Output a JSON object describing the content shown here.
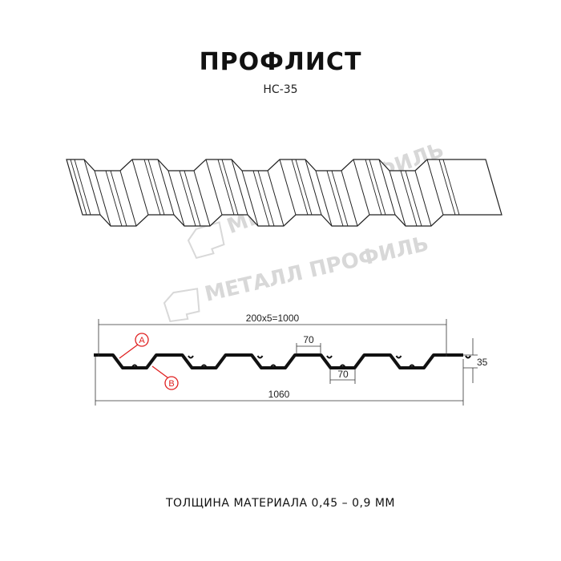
{
  "header": {
    "title": "ПРОФЛИСТ",
    "subtitle": "НС-35"
  },
  "watermark": {
    "text": "МЕТАЛЛ ПРОФИЛЬ"
  },
  "profile": {
    "dimension_pitch": "200x5=1000",
    "dimension_total": "1060",
    "dimension_height": "35",
    "dimension_crest": "70",
    "dimension_trough": "70",
    "marker_a": "A",
    "marker_b": "B",
    "marker_color": "#e02020"
  },
  "footer": {
    "thickness": "ТОЛЩИНА МАТЕРИАЛА 0,45 – 0,9 ММ"
  }
}
